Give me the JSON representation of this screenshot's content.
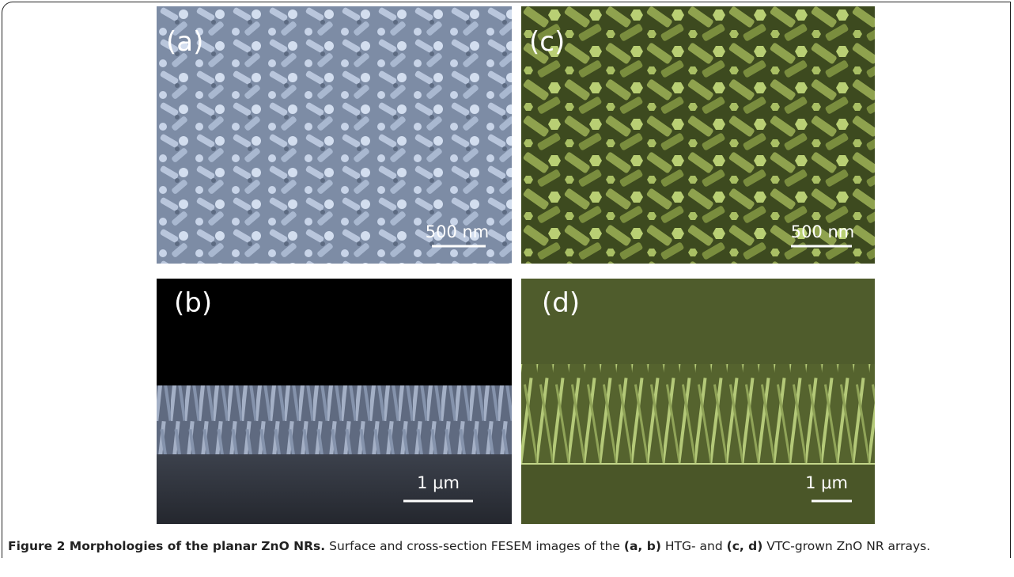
{
  "figure": {
    "panels": [
      {
        "label": "(a)",
        "scale_bar": "500 nm"
      },
      {
        "label": "(c)",
        "scale_bar": "500 nm"
      },
      {
        "label": "(b)",
        "scale_bar": "1 μm"
      },
      {
        "label": "(d)",
        "scale_bar": "1 μm"
      }
    ],
    "caption": {
      "title": "Figure 2 Morphologies of the planar ZnO NRs.",
      "text_1": "Surface and cross-section FESEM images of the",
      "ref_1": "(a, b)",
      "text_2": "HTG- and",
      "ref_2": "(c, d)",
      "text_3": "VTC-grown ZnO NR arrays."
    }
  }
}
